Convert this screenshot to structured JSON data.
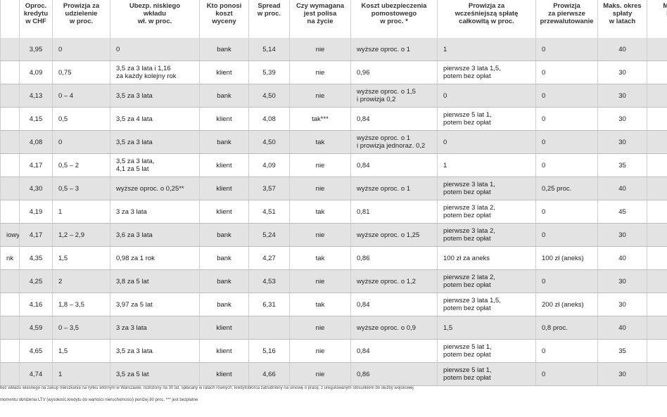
{
  "table": {
    "header": [
      "",
      "Oproc.\nkredytu\nw CHF",
      "Prowizja za\nudzielenie\nw proc.",
      "Ubezp. niskiego\nwkładu\nwł. w proc.",
      "Kto ponosi\nkoszt wyceny",
      "Spread\nw proc.",
      "Czy wymagana\njest polisa\nna życie",
      "Koszt ubezpieczenia\npomostowego\nw proc. *",
      "Prowizja za\nwcześniejszą spłatę\ncałkowitą w proc.",
      "Prowizja\nza pierwsze\nprzewalutowanie",
      "Maks. okres\nspłaty\nw latach",
      "Możli\nkre"
    ],
    "rows": [
      [
        null,
        "3,95",
        "0",
        "0",
        "bank",
        "5,14",
        "nie",
        "wyższe oproc. o 1",
        "1",
        "0",
        "40",
        null
      ],
      [
        null,
        "4,09",
        "0,75",
        "3,5 za 3 lata i 1,16\nza każdy kolejny rok",
        "klient",
        "5,39",
        "nie",
        "0,96",
        "pierwsze 3 lata 1,5,\npotem bez opłat",
        "0",
        "30",
        null
      ],
      [
        null,
        "4,13",
        "0 – 4",
        "3,5 za 3 lata",
        "bank",
        "4,50",
        "nie",
        "wyższe oproc. o 1,5\ni prowizja 0,2",
        "0",
        "0",
        "30",
        null
      ],
      [
        null,
        "4,15",
        "0,5",
        "3,5 za 4 lata",
        "klient",
        "4,08",
        "tak***",
        "0,84",
        "pierwsze 5 lat 1,\npotem bez opłat",
        "0",
        "30",
        null
      ],
      [
        null,
        "4,08",
        "0",
        "3,5 za 3 lata",
        "bank",
        "4,50",
        "tak",
        "wyższe oproc. o 1\ni prowizja jednoraz. 0,2",
        "0",
        "0",
        "30",
        null
      ],
      [
        null,
        "4,17",
        "0,5 – 2",
        "3,5 za 3 lata,\n4,1 za 5 lat",
        "klient",
        "4,09",
        "nie",
        "0,84",
        "1",
        "0",
        "35",
        null
      ],
      [
        null,
        "4,30",
        "0,5 – 3",
        "wyższe oproc. o 0,25**",
        "klient",
        "3,57",
        "nie",
        "wyższe oproc. o 1",
        "pierwsze 3 lata 1,\npotem bez opłat",
        "0,25 proc.",
        "40",
        null
      ],
      [
        null,
        "4,19",
        "1",
        "3 za 3 lata",
        "klient",
        "4,51",
        "tak",
        "0,81",
        "pierwsze 3 lata 2,\npotem bez opłat",
        "0",
        "45",
        null
      ],
      [
        "iowy",
        "4,17",
        "1,2 – 2,9",
        "3,6 za 3 lata",
        "bank",
        "5,24",
        "nie",
        "wyższe oproc. o 1,25",
        "pierwsze 3 lata 2,\npotem bez opłat",
        "0",
        "30",
        null
      ],
      [
        "nk",
        "4,35",
        "1,5",
        "0,98 za 1 rok",
        "bank",
        "4,27",
        "tak",
        "0,86",
        "100 zł za aneks",
        "100 zł (aneks)",
        "40",
        null
      ],
      [
        null,
        "4,25",
        "2",
        "3,8 za 5 lat",
        "bank",
        "4,53",
        "nie",
        "wyższe oproc. o 1,2",
        "pierwsze 2 lata 2,\npotem bez opłat",
        "0",
        "30",
        null
      ],
      [
        null,
        "4,16",
        "1,8 – 3,5",
        "3,97 za 5 lat",
        "bank",
        "6,31",
        "tak",
        "0,84",
        "pierwsze 3 lata 1,5,\npotem bez opłat",
        "200 zł (aneks)",
        "30",
        null
      ],
      [
        null,
        "4,59",
        "0 – 3,5",
        "3 za 3 lata",
        "klient",
        null,
        "nie",
        "wyższe oproc. o 0,9",
        "1,5",
        "0,8 proc.",
        "40",
        null
      ],
      [
        null,
        "4,65",
        "1,5",
        "3,5 za 3 lata",
        "klient",
        "5,16",
        "nie",
        "0,84",
        "pierwsze 5 lat  1,\npotem bez opłat",
        "0",
        "35",
        null
      ],
      [
        null,
        "4,74",
        "1",
        "3,5 za 5 lat",
        "klient",
        "4,66",
        "nie",
        "0,86",
        "pierwsze 5 lat 1,\npotem bez opłat",
        "0",
        "30",
        null
      ]
    ]
  },
  "footnotes": [
    "bez wkładu własnego na zakup mieszkania na rynku wtórnym w Warszawie, rozłożony na 30 lat, spłacany w ratach równych; kredytobiorca zatrudniony na umowę o pracę, z uregulowanym stosunkiem do służby wojskowej",
    "momentu obniżenia LTV (wysokość kredytu do wartości nieruchomości) poniżej 80 proc. *** jest bezpłatne"
  ]
}
